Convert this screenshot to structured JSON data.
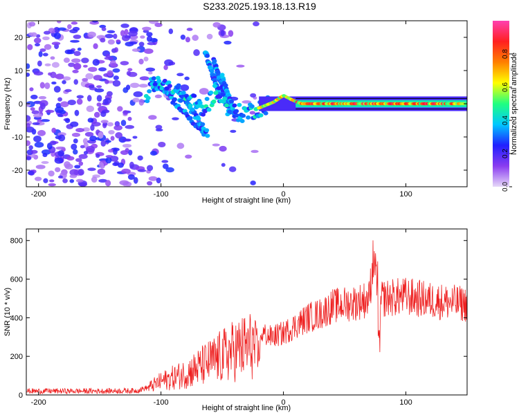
{
  "title": "S233.2025.193.18.13.R19",
  "chart_data": [
    {
      "type": "heatmap",
      "xlabel": "Height of straight line (km)",
      "ylabel": "Frequency (Hz)",
      "xlim": [
        -210,
        150
      ],
      "ylim": [
        -25,
        25
      ],
      "x_ticks": [
        -200,
        -100,
        0,
        100
      ],
      "y_ticks": [
        -20,
        -10,
        0,
        10,
        20
      ],
      "colorbar": {
        "label": "Normalized spectral amplitude",
        "range": [
          0,
          1
        ],
        "ticks": [
          0.0,
          0.2,
          0.4,
          0.6,
          0.8
        ],
        "colors": [
          "#e6d8f8",
          "#8a3cf0",
          "#2020ff",
          "#00c8ff",
          "#20ff80",
          "#ffff00",
          "#ff8000",
          "#ff2020",
          "#ff40b0"
        ]
      },
      "ridge": {
        "description_points": [
          [
            -110,
            6
          ],
          [
            -95,
            5
          ],
          [
            -80,
            2
          ],
          [
            -65,
            -2
          ],
          [
            -55,
            4
          ],
          [
            -45,
            -1
          ],
          [
            -35,
            -3
          ],
          [
            -25,
            -2
          ],
          [
            -18,
            -1
          ],
          [
            -8,
            0.5
          ],
          [
            0,
            2.5
          ],
          [
            8,
            1
          ],
          [
            15,
            0
          ],
          [
            150,
            0
          ]
        ],
        "peak_amplitude": 0.9
      }
    },
    {
      "type": "line",
      "xlabel": "Height of straight line (km)",
      "ylabel": "SNR (10 * v/v)",
      "xlim": [
        -210,
        150
      ],
      "ylim": [
        0,
        860
      ],
      "x_ticks": [
        -200,
        -100,
        0,
        100
      ],
      "y_ticks": [
        0,
        200,
        400,
        600,
        800
      ],
      "series": [
        {
          "color": "#ee2020",
          "points": [
            [
              -210,
              20
            ],
            [
              -150,
              20
            ],
            [
              -120,
              22
            ],
            [
              -110,
              40
            ],
            [
              -100,
              70
            ],
            [
              -80,
              110
            ],
            [
              -60,
              170
            ],
            [
              -40,
              230
            ],
            [
              -25,
              260
            ],
            [
              -20,
              180
            ],
            [
              -18,
              320
            ],
            [
              -10,
              300
            ],
            [
              0,
              320
            ],
            [
              10,
              360
            ],
            [
              20,
              400
            ],
            [
              30,
              420
            ],
            [
              40,
              460
            ],
            [
              60,
              480
            ],
            [
              70,
              500
            ],
            [
              75,
              820
            ],
            [
              78,
              240
            ],
            [
              80,
              500
            ],
            [
              100,
              510
            ],
            [
              120,
              490
            ],
            [
              150,
              470
            ]
          ]
        }
      ]
    }
  ]
}
